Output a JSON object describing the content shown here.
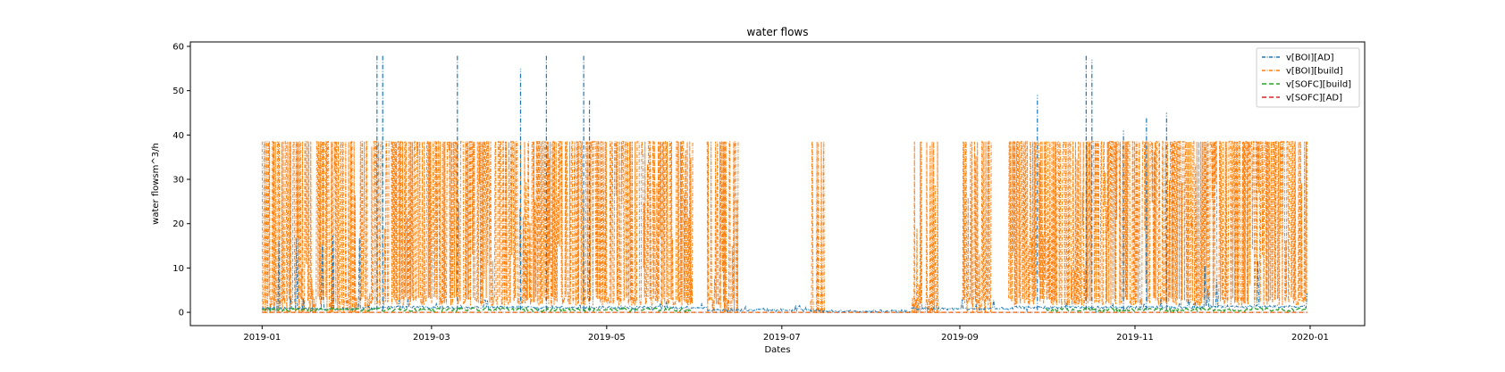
{
  "chart_data": {
    "type": "line",
    "title": "water flows",
    "xlabel": "Dates",
    "ylabel": "water flowsm^3/h",
    "xlim": [
      "2018-12-07",
      "2020-01-20"
    ],
    "ylim": [
      -3,
      61
    ],
    "xticks": [
      "2019-01",
      "2019-03",
      "2019-05",
      "2019-07",
      "2019-09",
      "2019-11",
      "2020-01"
    ],
    "yticks": [
      0,
      10,
      20,
      30,
      40,
      50,
      60
    ],
    "grid": false,
    "legend_position": "top-right",
    "series": [
      {
        "name": "v[BOI][AD]",
        "color": "#1f77b4",
        "style": "dashdot",
        "segments": [
          {
            "start": "2019-01-01",
            "end": "2019-02-05",
            "base": 0.5,
            "peak": 18
          },
          {
            "start": "2019-02-05",
            "end": "2019-06-05",
            "base": 0.8,
            "peak": 3
          },
          {
            "start": "2019-06-05",
            "end": "2019-07-15",
            "base": 0.2,
            "peak": 2
          },
          {
            "start": "2019-07-15",
            "end": "2019-08-15",
            "base": 0,
            "peak": 0
          },
          {
            "start": "2019-08-15",
            "end": "2019-09-20",
            "base": 0.5,
            "peak": 3
          },
          {
            "start": "2019-09-20",
            "end": "2019-11-25",
            "base": 0.8,
            "peak": 3
          },
          {
            "start": "2019-11-25",
            "end": "2019-12-31",
            "base": 1.0,
            "peak": 14
          }
        ],
        "spikes": [
          {
            "x": "2019-02-10",
            "y": 58
          },
          {
            "x": "2019-02-12",
            "y": 58
          },
          {
            "x": "2019-03-10",
            "y": 58
          },
          {
            "x": "2019-04-01",
            "y": 55
          },
          {
            "x": "2019-04-10",
            "y": 58
          },
          {
            "x": "2019-04-23",
            "y": 58
          },
          {
            "x": "2019-04-25",
            "y": 48
          },
          {
            "x": "2019-09-28",
            "y": 49
          },
          {
            "x": "2019-10-15",
            "y": 58
          },
          {
            "x": "2019-10-17",
            "y": 57
          },
          {
            "x": "2019-10-28",
            "y": 41
          },
          {
            "x": "2019-11-05",
            "y": 44
          },
          {
            "x": "2019-11-12",
            "y": 45
          }
        ]
      },
      {
        "name": "v[BOI][build]",
        "color": "#ff7f0e",
        "style": "dashdot",
        "segments": [
          {
            "start": "2019-01-01",
            "end": "2019-02-08",
            "low": 1.5,
            "high": 38.5,
            "density": 0.8
          },
          {
            "start": "2019-02-08",
            "end": "2019-05-31",
            "low": 1.5,
            "high": 38.5,
            "density": 1.0
          },
          {
            "start": "2019-06-05",
            "end": "2019-06-16",
            "low": 1.5,
            "high": 38.5,
            "density": 0.7
          },
          {
            "start": "2019-07-11",
            "end": "2019-07-16",
            "low": 1.5,
            "high": 38.5,
            "density": 0.3
          },
          {
            "start": "2019-08-15",
            "end": "2019-08-26",
            "low": 1.5,
            "high": 38.5,
            "density": 0.5
          },
          {
            "start": "2019-09-02",
            "end": "2019-09-12",
            "low": 1.5,
            "high": 38.5,
            "density": 0.8
          },
          {
            "start": "2019-09-18",
            "end": "2019-12-31",
            "low": 1.5,
            "high": 38.5,
            "density": 1.0
          }
        ],
        "baseline": 0
      },
      {
        "name": "v[SOFC][build]",
        "color": "#2ca02c",
        "style": "dashed",
        "segments": [
          {
            "start": "2019-01-01",
            "end": "2019-05-31",
            "value": 0.6
          },
          {
            "start": "2019-10-01",
            "end": "2019-12-31",
            "value": 0.6
          }
        ]
      },
      {
        "name": "v[SOFC][AD]",
        "color": "#d62728",
        "style": "dashed",
        "segments": [
          {
            "start": "2019-01-01",
            "end": "2019-12-31",
            "value": 0
          }
        ]
      }
    ]
  }
}
